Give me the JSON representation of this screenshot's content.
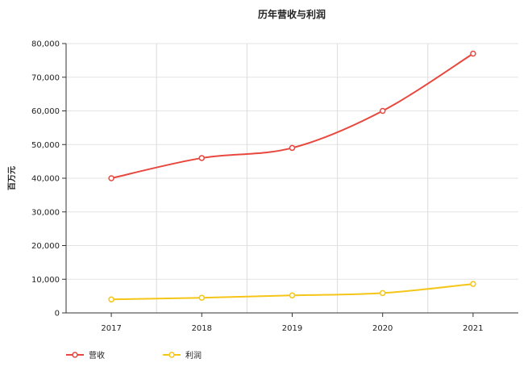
{
  "chart_data": {
    "type": "line",
    "title": "历年营收与利润",
    "ylabel": "百万元",
    "xlabel": "",
    "categories": [
      "2017",
      "2018",
      "2019",
      "2020",
      "2021"
    ],
    "ylim": [
      0,
      80000
    ],
    "yticks": [
      "0",
      "10,000",
      "20,000",
      "30,000",
      "40,000",
      "50,000",
      "60,000",
      "70,000",
      "80,000"
    ],
    "grid": true,
    "legend_position": "bottom-left",
    "series": [
      {
        "name": "营收",
        "color": "#e8473d",
        "values": [
          40000,
          46000,
          49000,
          60000,
          77000
        ]
      },
      {
        "name": "利润",
        "color": "#f5c518",
        "values": [
          4000,
          4500,
          5200,
          5900,
          8600
        ]
      }
    ]
  }
}
